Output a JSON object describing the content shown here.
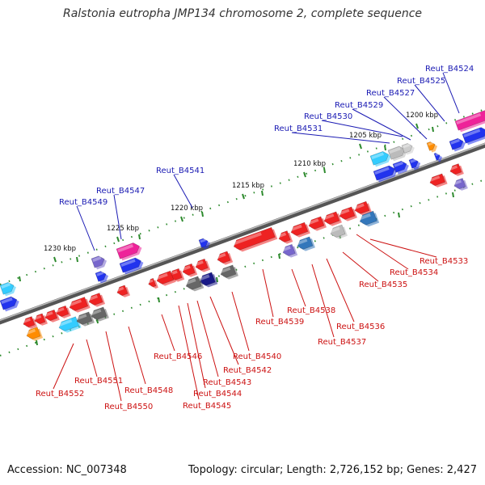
{
  "title": "Ralstonia eutropha JMP134 chromosome 2, complete sequence",
  "footer": {
    "accession": "Accession: NC_007348",
    "summary": "Topology: circular; Length: 2,726,152 bp; Genes: 2,427"
  },
  "colors": {
    "forward_label": "#1a1ab3",
    "reverse_label": "#cc1111",
    "scale_tick": "#2d8a2d",
    "backbone": "#777777"
  },
  "scale_marks": [
    "1200 kbp",
    "1205 kbp",
    "1210 kbp",
    "1215 kbp",
    "1220 kbp",
    "1225 kbp",
    "1230 kbp"
  ],
  "forward_genes": [
    "Reut_B4524",
    "Reut_B4525",
    "Reut_B4527",
    "Reut_B4529",
    "Reut_B4530",
    "Reut_B4531",
    "Reut_B4541",
    "Reut_B4547",
    "Reut_B4549"
  ],
  "reverse_genes": [
    "Reut_B4533",
    "Reut_B4534",
    "Reut_B4535",
    "Reut_B4536",
    "Reut_B4537",
    "Reut_B4538",
    "Reut_B4539",
    "Reut_B4540",
    "Reut_B4542",
    "Reut_B4543",
    "Reut_B4544",
    "Reut_B4545",
    "Reut_B4546",
    "Reut_B4548",
    "Reut_B4550",
    "Reut_B4551",
    "Reut_B4552"
  ]
}
